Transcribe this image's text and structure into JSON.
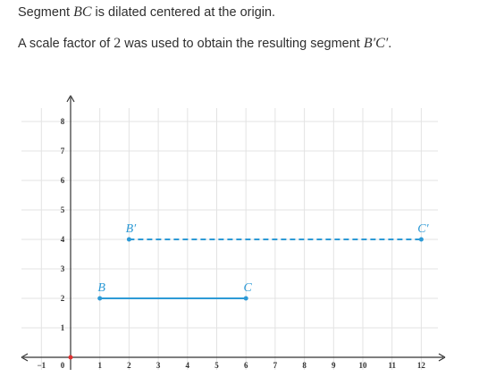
{
  "problem": {
    "line1": {
      "before": "Segment ",
      "segment": "BC",
      "after": " is dilated centered at the origin."
    },
    "line2": {
      "before": "A scale factor of ",
      "factor": "2",
      "middle": " was used to obtain the resulting segment ",
      "segment": "B′C′",
      "after": "."
    }
  },
  "chart_data": {
    "type": "line",
    "xlim": [
      -1.5,
      13
    ],
    "ylim": [
      -0.4,
      9
    ],
    "grid": true,
    "x_ticks": [
      {
        "v": -1,
        "label": "−1"
      },
      {
        "v": 0,
        "label": "0"
      },
      {
        "v": 1,
        "label": "1"
      },
      {
        "v": 2,
        "label": "2"
      },
      {
        "v": 3,
        "label": "3"
      },
      {
        "v": 4,
        "label": "4"
      },
      {
        "v": 5,
        "label": "5"
      },
      {
        "v": 6,
        "label": "6"
      },
      {
        "v": 7,
        "label": "7"
      },
      {
        "v": 8,
        "label": "8"
      },
      {
        "v": 9,
        "label": "9"
      },
      {
        "v": 10,
        "label": "10"
      },
      {
        "v": 11,
        "label": "11"
      },
      {
        "v": 12,
        "label": "12"
      }
    ],
    "y_ticks": [
      {
        "v": 1,
        "label": "1"
      },
      {
        "v": 2,
        "label": "2"
      },
      {
        "v": 3,
        "label": "3"
      },
      {
        "v": 4,
        "label": "4"
      },
      {
        "v": 5,
        "label": "5"
      },
      {
        "v": 6,
        "label": "6"
      },
      {
        "v": 7,
        "label": "7"
      },
      {
        "v": 8,
        "label": "8"
      }
    ],
    "origin_color": "#e03030",
    "segments": [
      {
        "id": "segment-bc",
        "style": "solid",
        "color": "#2d9ad6",
        "points": [
          {
            "label": "B",
            "x": 1,
            "y": 2
          },
          {
            "label": "C",
            "x": 6,
            "y": 2
          }
        ]
      },
      {
        "id": "segment-b-prime-c-prime",
        "style": "dashed",
        "color": "#2d9ad6",
        "points": [
          {
            "label": "B′",
            "x": 2,
            "y": 4
          },
          {
            "label": "C′",
            "x": 12,
            "y": 4
          }
        ]
      }
    ]
  }
}
